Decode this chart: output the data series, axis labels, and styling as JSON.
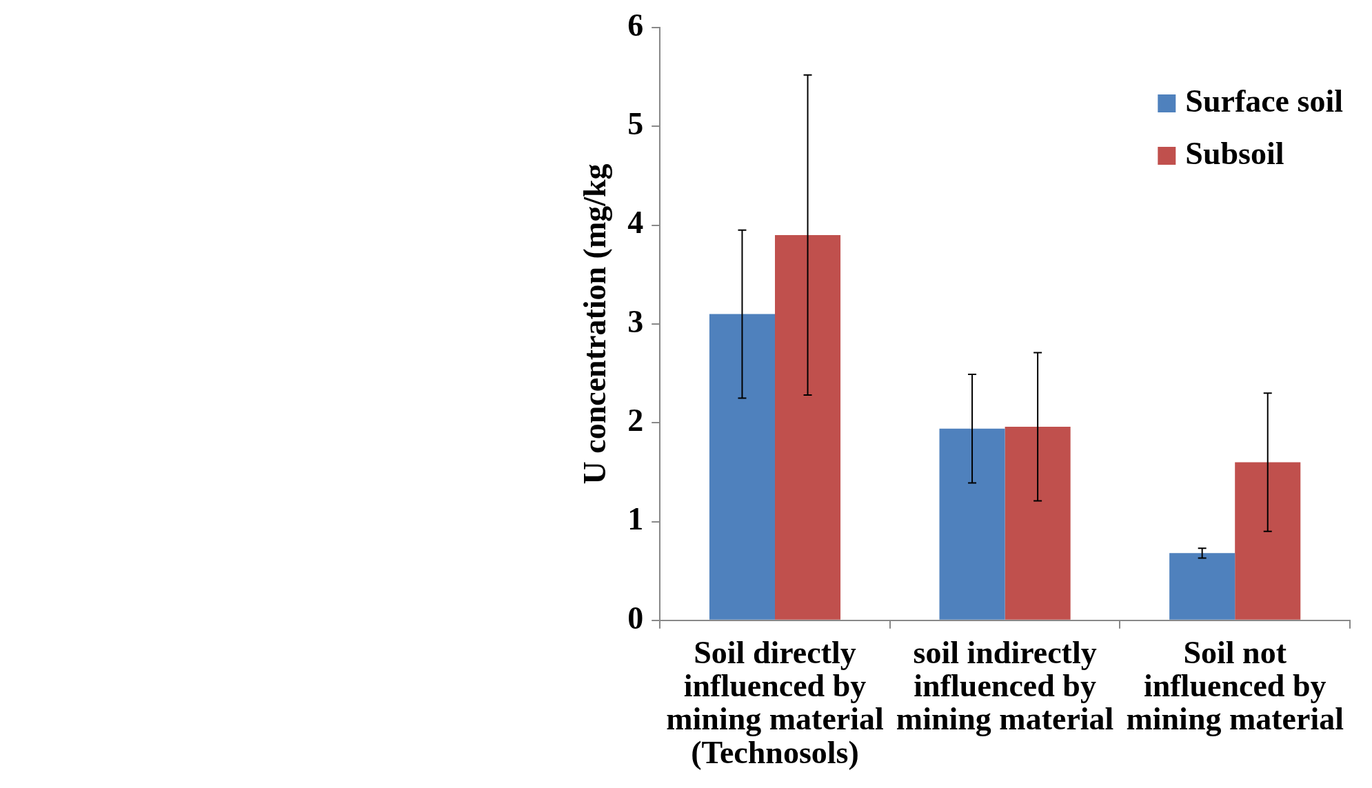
{
  "chart_data": {
    "type": "bar",
    "ylabel": "U concentration (mg/kg",
    "categories": [
      "Soil directly influenced by mining material (Technosols)",
      "soil indirectly influenced by mining material",
      "Soil not influenced by mining material"
    ],
    "series": [
      {
        "name": "Surface soil",
        "color": "#4f81bd",
        "values": [
          3.1,
          1.94,
          0.68
        ],
        "errors": [
          0.85,
          0.55,
          0.05
        ]
      },
      {
        "name": "Subsoil",
        "color": "#c0504d",
        "values": [
          3.9,
          1.96,
          1.6
        ],
        "errors": [
          1.62,
          0.75,
          0.7
        ]
      }
    ],
    "ylim": [
      0,
      6
    ],
    "yticks": [
      0,
      1,
      2,
      3,
      4,
      5,
      6
    ],
    "grid": false,
    "legend": "top right"
  }
}
